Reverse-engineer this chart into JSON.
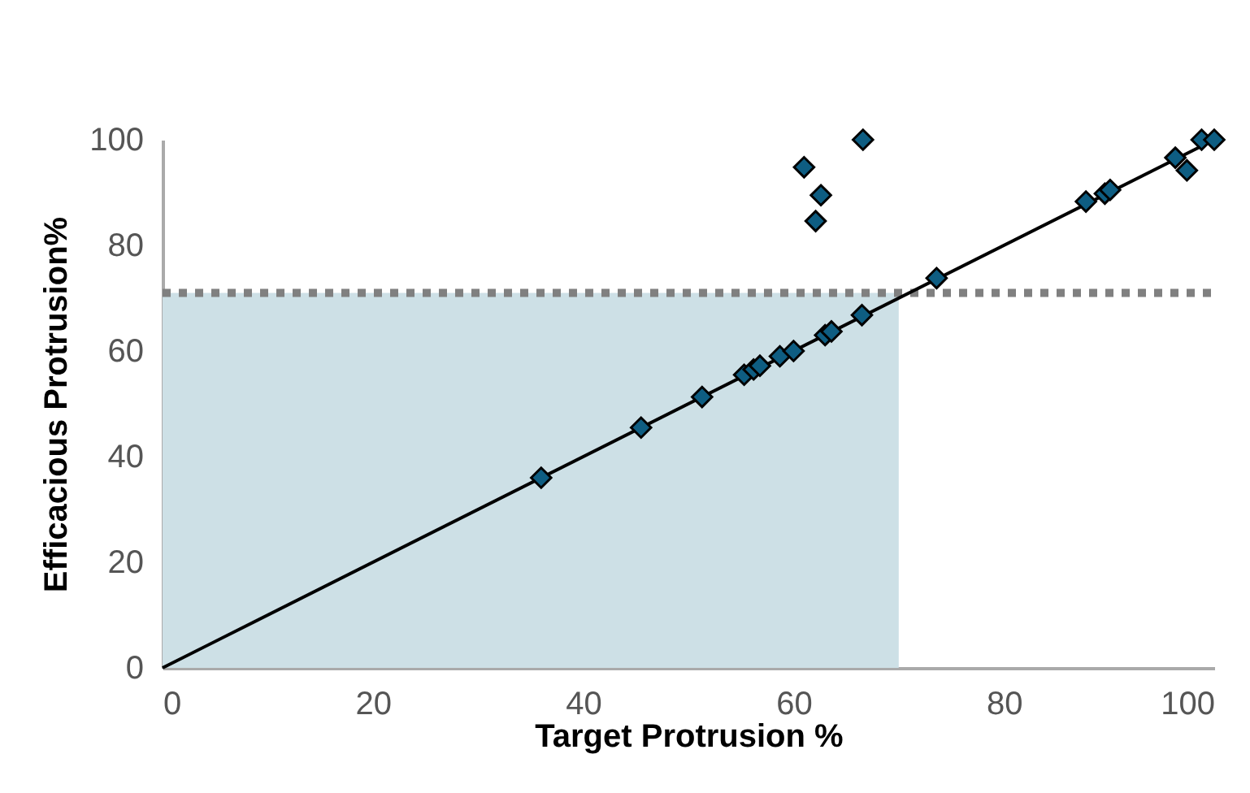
{
  "chart_data": {
    "type": "scatter",
    "xlabel": "Target Protrusion %",
    "ylabel": "Efficacious Protrusion%",
    "xlim": [
      0,
      100
    ],
    "ylim": [
      0,
      100
    ],
    "xticks": [
      0,
      20,
      40,
      60,
      80,
      100
    ],
    "yticks": [
      0,
      20,
      40,
      60,
      80,
      100
    ],
    "grid": false,
    "series": [
      {
        "color": "#0e5d82",
        "marker": "diamond",
        "x": [
          36,
          45.5,
          51.3,
          55.3,
          56.2,
          56.8,
          58.7,
          60,
          63,
          63.6,
          66.5,
          73.6,
          61,
          62.6,
          62.1,
          66.6,
          87.8,
          89.6,
          90.1,
          96.3,
          97.4,
          98.8,
          100
        ],
        "values": [
          36,
          45.5,
          51.3,
          55.5,
          56.5,
          57.2,
          59,
          60,
          63,
          63.7,
          66.8,
          73.8,
          94.8,
          89.5,
          84.6,
          100,
          88.3,
          89.8,
          90.5,
          96.6,
          94.2,
          100,
          100
        ]
      },
      {
        "type": "line",
        "color": "#000000",
        "line_style": "solid",
        "x": [
          0,
          100
        ],
        "values": [
          0,
          100
        ]
      }
    ],
    "ref_lines": [
      {
        "axis": "y",
        "value": 71,
        "color": "#808080",
        "line_style": "dotted"
      }
    ],
    "bands": [
      {
        "axis": "x",
        "from": 0,
        "to": 70,
        "color": "#cde0e6"
      }
    ]
  }
}
